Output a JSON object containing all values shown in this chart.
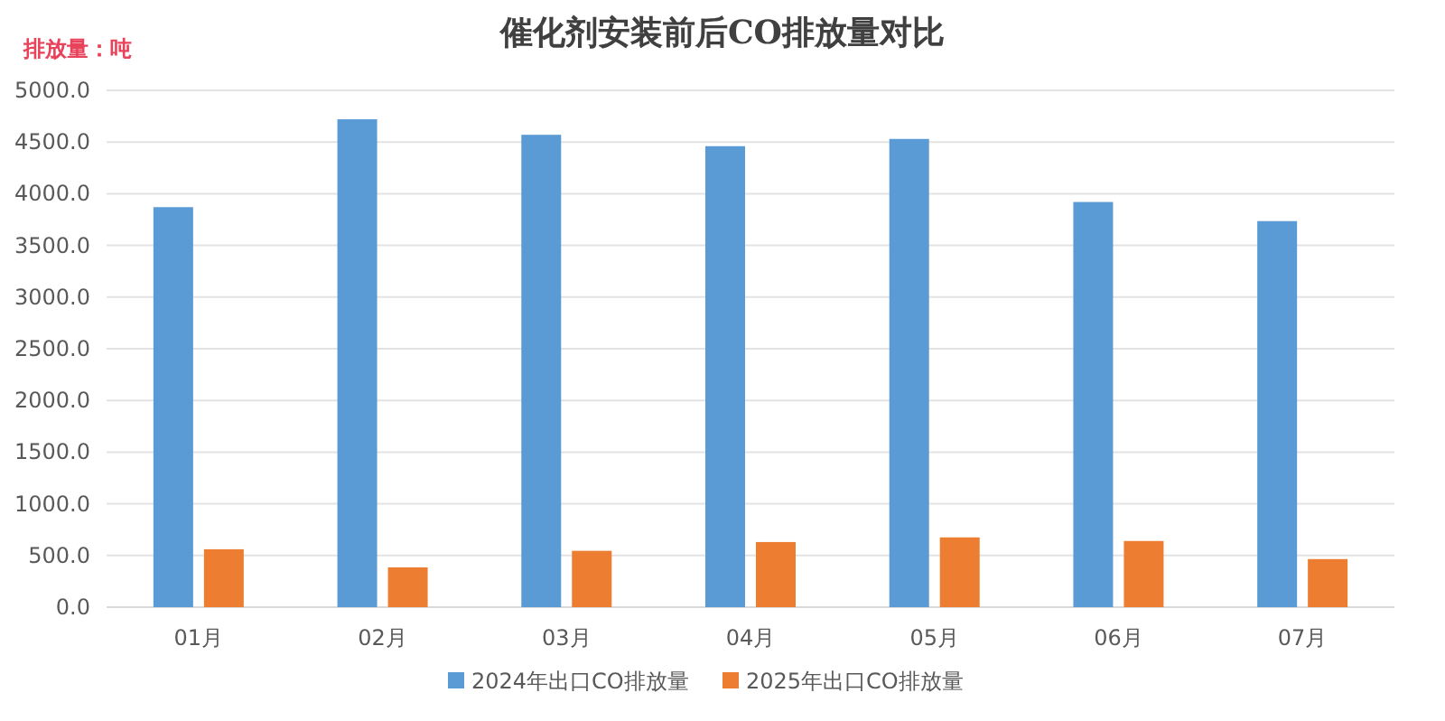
{
  "chart_data": {
    "type": "bar",
    "title": "催化剂安装前后CO排放量对比",
    "ylabel": "排放量：吨",
    "categories": [
      "01月",
      "02月",
      "03月",
      "04月",
      "05月",
      "06月",
      "07月"
    ],
    "series": [
      {
        "name": "2024年出口CO排放量",
        "color": "#5b9bd5",
        "values": [
          3870,
          4720,
          4570,
          4460,
          4530,
          3920,
          3735
        ]
      },
      {
        "name": "2025年出口CO排放量",
        "color": "#ed7d31",
        "values": [
          560,
          385,
          545,
          630,
          675,
          640,
          465
        ]
      }
    ],
    "ylim": [
      0,
      5000
    ],
    "yticks": [
      {
        "value": 0,
        "label": "0.0"
      },
      {
        "value": 500,
        "label": "500.0"
      },
      {
        "value": 1000,
        "label": "1000.0"
      },
      {
        "value": 1500,
        "label": "1500.0"
      },
      {
        "value": 2000,
        "label": "2000.0"
      },
      {
        "value": 2500,
        "label": "2500.0"
      },
      {
        "value": 3000,
        "label": "3000.0"
      },
      {
        "value": 3500,
        "label": "3500.0"
      },
      {
        "value": 4000,
        "label": "4000.0"
      },
      {
        "value": 4500,
        "label": "4500.0"
      },
      {
        "value": 5000,
        "label": "5000.0"
      }
    ],
    "grid": "y",
    "legend": "bottom"
  }
}
